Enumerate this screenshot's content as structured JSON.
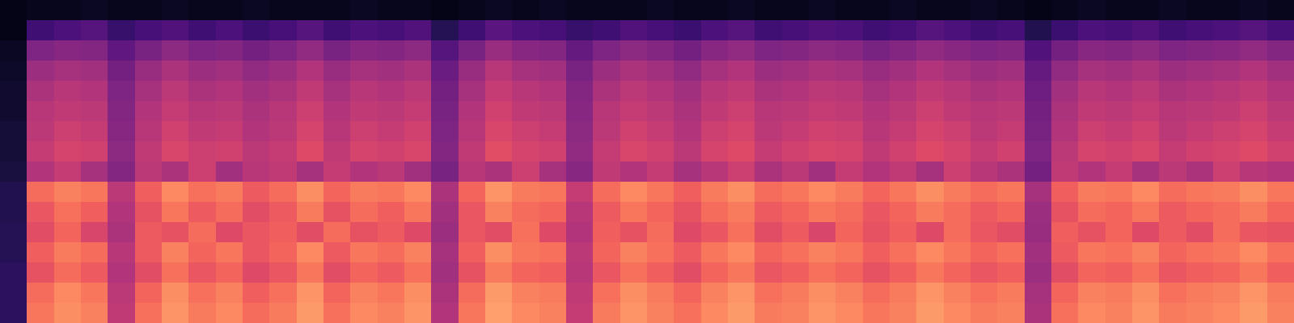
{
  "chart_data": {
    "type": "heatmap",
    "tick_labels": false,
    "values": [
      [
        0,
        1,
        1,
        2,
        1,
        1,
        2,
        1,
        1,
        2,
        1,
        1,
        1,
        2,
        1,
        1,
        0,
        1,
        2,
        1,
        2,
        1,
        1,
        1,
        2,
        1,
        1,
        2,
        1,
        1,
        2,
        1,
        1,
        2,
        1,
        1,
        2,
        1,
        0,
        1,
        2,
        1,
        1,
        2,
        1,
        1,
        2,
        1
      ],
      [
        0,
        14,
        16,
        18,
        12,
        15,
        17,
        14,
        16,
        13,
        15,
        18,
        14,
        16,
        15,
        17,
        9,
        14,
        19,
        16,
        15,
        12,
        14,
        17,
        15,
        13,
        16,
        18,
        14,
        15,
        17,
        16,
        14,
        15,
        18,
        16,
        14,
        15,
        8,
        13,
        16,
        15,
        17,
        14,
        15,
        16,
        18,
        15
      ],
      [
        2,
        26,
        28,
        27,
        20,
        25,
        29,
        26,
        27,
        24,
        26,
        30,
        25,
        28,
        27,
        29,
        18,
        25,
        31,
        28,
        27,
        21,
        26,
        29,
        27,
        24,
        28,
        30,
        26,
        27,
        29,
        28,
        25,
        27,
        30,
        28,
        26,
        27,
        17,
        24,
        28,
        27,
        29,
        26,
        27,
        28,
        30,
        27
      ],
      [
        3,
        32,
        34,
        33,
        24,
        31,
        35,
        32,
        33,
        30,
        32,
        36,
        31,
        34,
        33,
        35,
        22,
        31,
        37,
        34,
        33,
        25,
        32,
        35,
        33,
        30,
        34,
        36,
        32,
        33,
        35,
        34,
        31,
        33,
        36,
        34,
        32,
        33,
        21,
        30,
        34,
        33,
        35,
        32,
        33,
        34,
        36,
        33
      ],
      [
        4,
        35,
        37,
        36,
        26,
        34,
        38,
        35,
        36,
        33,
        35,
        39,
        34,
        37,
        36,
        38,
        24,
        34,
        40,
        37,
        36,
        27,
        35,
        38,
        36,
        33,
        37,
        39,
        35,
        36,
        38,
        37,
        34,
        36,
        39,
        37,
        35,
        36,
        23,
        33,
        37,
        36,
        38,
        35,
        36,
        37,
        39,
        36
      ],
      [
        4,
        37,
        39,
        38,
        27,
        36,
        40,
        37,
        38,
        35,
        37,
        41,
        36,
        39,
        38,
        40,
        25,
        36,
        42,
        39,
        38,
        28,
        37,
        40,
        38,
        35,
        39,
        41,
        37,
        38,
        40,
        39,
        36,
        38,
        41,
        39,
        37,
        38,
        24,
        35,
        39,
        38,
        40,
        37,
        38,
        39,
        41,
        38
      ],
      [
        5,
        38,
        41,
        40,
        28,
        37,
        42,
        39,
        40,
        36,
        38,
        43,
        37,
        41,
        40,
        42,
        26,
        37,
        44,
        41,
        40,
        29,
        38,
        42,
        40,
        36,
        41,
        43,
        38,
        40,
        42,
        41,
        37,
        40,
        43,
        41,
        38,
        40,
        25,
        36,
        41,
        40,
        42,
        38,
        40,
        41,
        43,
        40
      ],
      [
        5,
        40,
        43,
        42,
        29,
        39,
        44,
        41,
        42,
        38,
        40,
        45,
        39,
        43,
        42,
        44,
        27,
        39,
        46,
        43,
        42,
        30,
        40,
        44,
        42,
        38,
        43,
        45,
        40,
        42,
        44,
        43,
        39,
        42,
        45,
        43,
        40,
        42,
        26,
        38,
        43,
        42,
        44,
        40,
        42,
        43,
        45,
        42
      ],
      [
        6,
        36,
        40,
        34,
        27,
        38,
        35,
        41,
        33,
        37,
        39,
        34,
        40,
        36,
        38,
        33,
        25,
        37,
        35,
        41,
        34,
        28,
        39,
        36,
        40,
        34,
        37,
        41,
        35,
        38,
        33,
        40,
        36,
        39,
        34,
        41,
        37,
        35,
        24,
        39,
        36,
        40,
        34,
        38,
        35,
        41,
        37,
        36
      ],
      [
        8,
        52,
        56,
        54,
        38,
        50,
        57,
        53,
        55,
        49,
        52,
        58,
        51,
        55,
        54,
        57,
        35,
        51,
        59,
        55,
        54,
        40,
        52,
        57,
        54,
        50,
        55,
        58,
        52,
        54,
        57,
        55,
        51,
        54,
        58,
        55,
        52,
        54,
        34,
        50,
        55,
        54,
        57,
        52,
        54,
        55,
        58,
        54
      ],
      [
        8,
        48,
        53,
        50,
        36,
        47,
        54,
        49,
        52,
        46,
        49,
        55,
        47,
        52,
        50,
        54,
        33,
        48,
        56,
        52,
        51,
        37,
        49,
        54,
        51,
        47,
        52,
        55,
        49,
        51,
        54,
        52,
        48,
        51,
        55,
        52,
        49,
        51,
        32,
        47,
        52,
        51,
        54,
        49,
        51,
        52,
        55,
        51
      ],
      [
        9,
        46,
        51,
        44,
        35,
        49,
        47,
        52,
        45,
        48,
        50,
        46,
        52,
        47,
        49,
        45,
        32,
        48,
        46,
        53,
        45,
        36,
        50,
        47,
        52,
        45,
        48,
        53,
        46,
        49,
        44,
        51,
        47,
        50,
        45,
        52,
        48,
        46,
        31,
        50,
        47,
        51,
        45,
        49,
        46,
        52,
        48,
        47
      ],
      [
        9,
        50,
        55,
        52,
        37,
        49,
        56,
        51,
        54,
        48,
        51,
        57,
        49,
        54,
        52,
        56,
        34,
        50,
        58,
        54,
        53,
        38,
        51,
        56,
        53,
        49,
        54,
        57,
        51,
        53,
        56,
        54,
        50,
        53,
        57,
        54,
        51,
        53,
        33,
        49,
        54,
        53,
        56,
        51,
        53,
        54,
        57,
        53
      ],
      [
        10,
        47,
        52,
        49,
        36,
        46,
        53,
        48,
        51,
        45,
        48,
        54,
        46,
        51,
        49,
        53,
        33,
        47,
        55,
        51,
        50,
        37,
        48,
        53,
        50,
        46,
        51,
        54,
        48,
        50,
        53,
        51,
        47,
        50,
        54,
        51,
        48,
        50,
        32,
        46,
        51,
        50,
        53,
        48,
        50,
        51,
        54,
        50
      ],
      [
        10,
        52,
        57,
        54,
        38,
        51,
        58,
        53,
        56,
        50,
        53,
        59,
        51,
        56,
        54,
        58,
        35,
        52,
        60,
        56,
        55,
        39,
        53,
        58,
        55,
        51,
        56,
        59,
        53,
        55,
        58,
        56,
        52,
        55,
        59,
        56,
        53,
        55,
        34,
        51,
        56,
        55,
        58,
        53,
        55,
        56,
        59,
        55
      ],
      [
        10,
        54,
        58,
        56,
        39,
        53,
        59,
        55,
        57,
        52,
        55,
        60,
        53,
        57,
        56,
        59,
        36,
        54,
        61,
        57,
        56,
        40,
        55,
        59,
        56,
        53,
        57,
        60,
        55,
        56,
        59,
        57,
        54,
        56,
        60,
        57,
        55,
        56,
        35,
        53,
        57,
        56,
        59,
        55,
        56,
        57,
        60,
        56
      ]
    ]
  }
}
